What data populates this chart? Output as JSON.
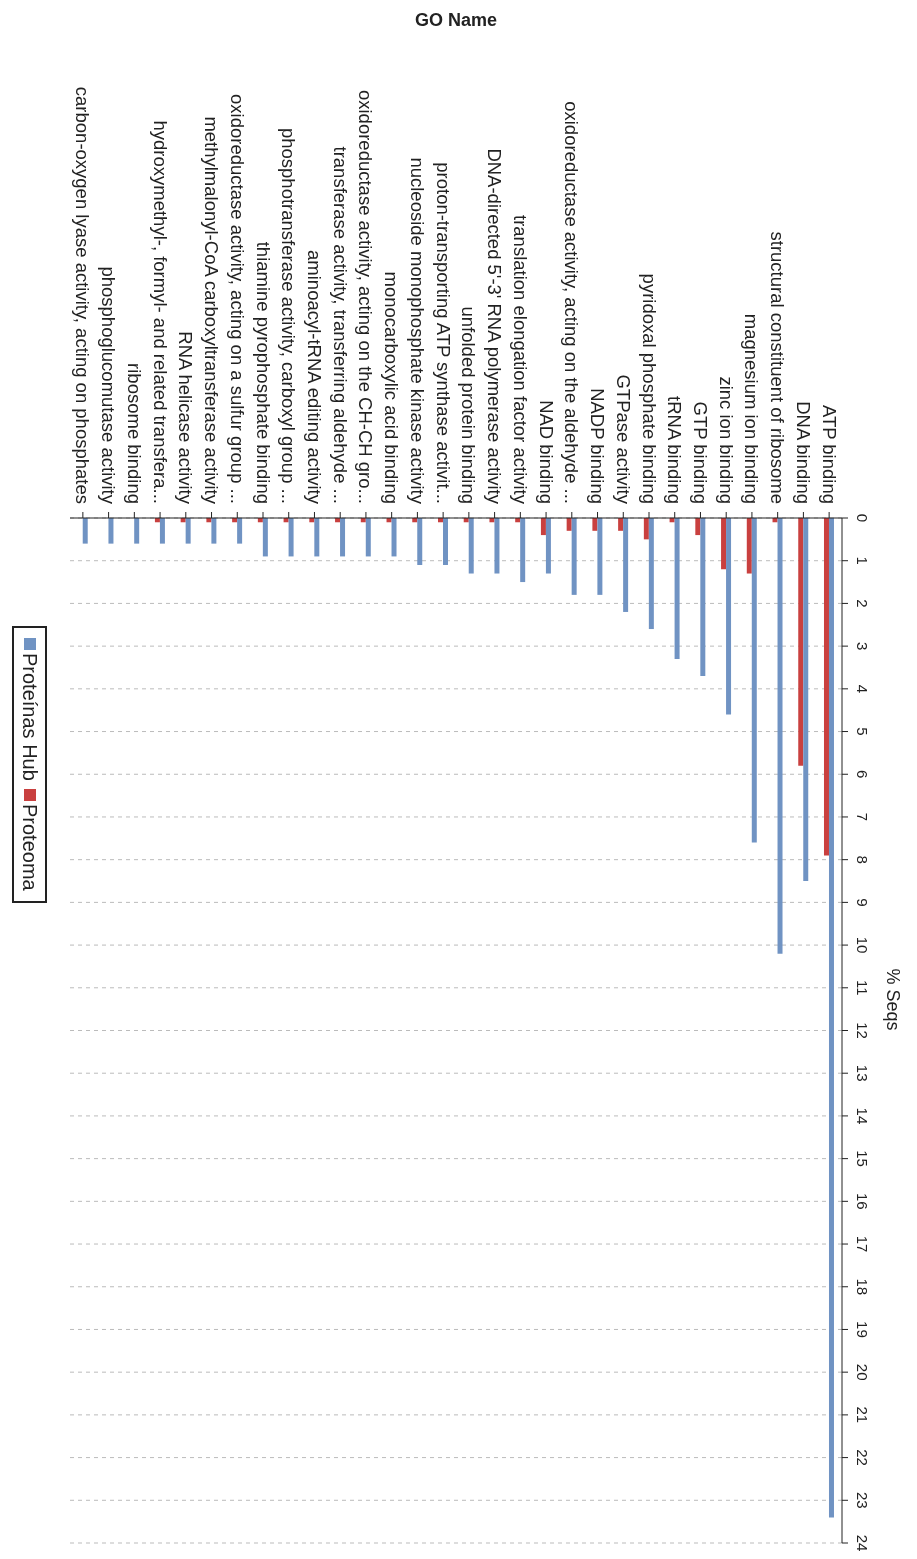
{
  "chart_data": {
    "type": "bar",
    "xlabel": "GO Name",
    "ylabel": "% Seqs",
    "categories": [
      "carbon-oxygen lyase activity, acting on phosphates",
      "phosphoglucomutase activity",
      "ribosome binding",
      "hydroxymethyl-, formyl- and related transfera...",
      "RNA helicase activity",
      "methylmalonyl-CoA carboxyltransferase activity",
      "oxidoreductase activity, acting on a sulfur group ...",
      "thiamine pyrophosphate binding",
      "phosphotransferase activity, carboxyl group ...",
      "aminoacyl-tRNA editing activity",
      "transferase activity, transferring aldehyde ...",
      "oxidoreductase activity, acting on the CH-CH gro...",
      "monocarboxylic acid binding",
      "nucleoside monophosphate kinase activity",
      "proton-transporting ATP synthase activit...",
      "unfolded protein binding",
      "DNA-directed 5'-3' RNA polymerase activity",
      "translation elongation factor activity",
      "NAD binding",
      "oxidoreductase activity, acting on the aldehyde ...",
      "NADP binding",
      "GTPase activity",
      "pyridoxal phosphate binding",
      "tRNA binding",
      "GTP binding",
      "zinc ion binding",
      "magnesium ion binding",
      "structural constituent of ribosome",
      "DNA binding",
      "ATP binding"
    ],
    "series": [
      {
        "name": "Proteínas Hub",
        "color": "#7093c3",
        "values": [
          0.6,
          0.6,
          0.6,
          0.6,
          0.6,
          0.6,
          0.6,
          0.9,
          0.9,
          0.9,
          0.9,
          0.9,
          0.9,
          1.1,
          1.1,
          1.3,
          1.3,
          1.5,
          1.3,
          1.8,
          1.8,
          2.2,
          2.6,
          3.3,
          3.7,
          4.6,
          7.6,
          10.2,
          8.5,
          23.4
        ]
      },
      {
        "name": "Proteoma",
        "color": "#c9403f",
        "values": [
          0,
          0,
          0,
          0.1,
          0.1,
          0.1,
          0.1,
          0.1,
          0.1,
          0.1,
          0.1,
          0.1,
          0.1,
          0.1,
          0.1,
          0.1,
          0.1,
          0.1,
          0.4,
          0.3,
          0.3,
          0.3,
          0.5,
          0.1,
          0.4,
          1.2,
          1.3,
          0.1,
          5.8,
          7.9
        ]
      }
    ],
    "ylim": [
      24,
      0
    ],
    "yticks": [
      0,
      1,
      2,
      3,
      4,
      5,
      6,
      7,
      8,
      9,
      10,
      11,
      12,
      13,
      14,
      15,
      16,
      17,
      18,
      19,
      20,
      21,
      22,
      23,
      24
    ],
    "grid": "y",
    "legend": "left"
  }
}
